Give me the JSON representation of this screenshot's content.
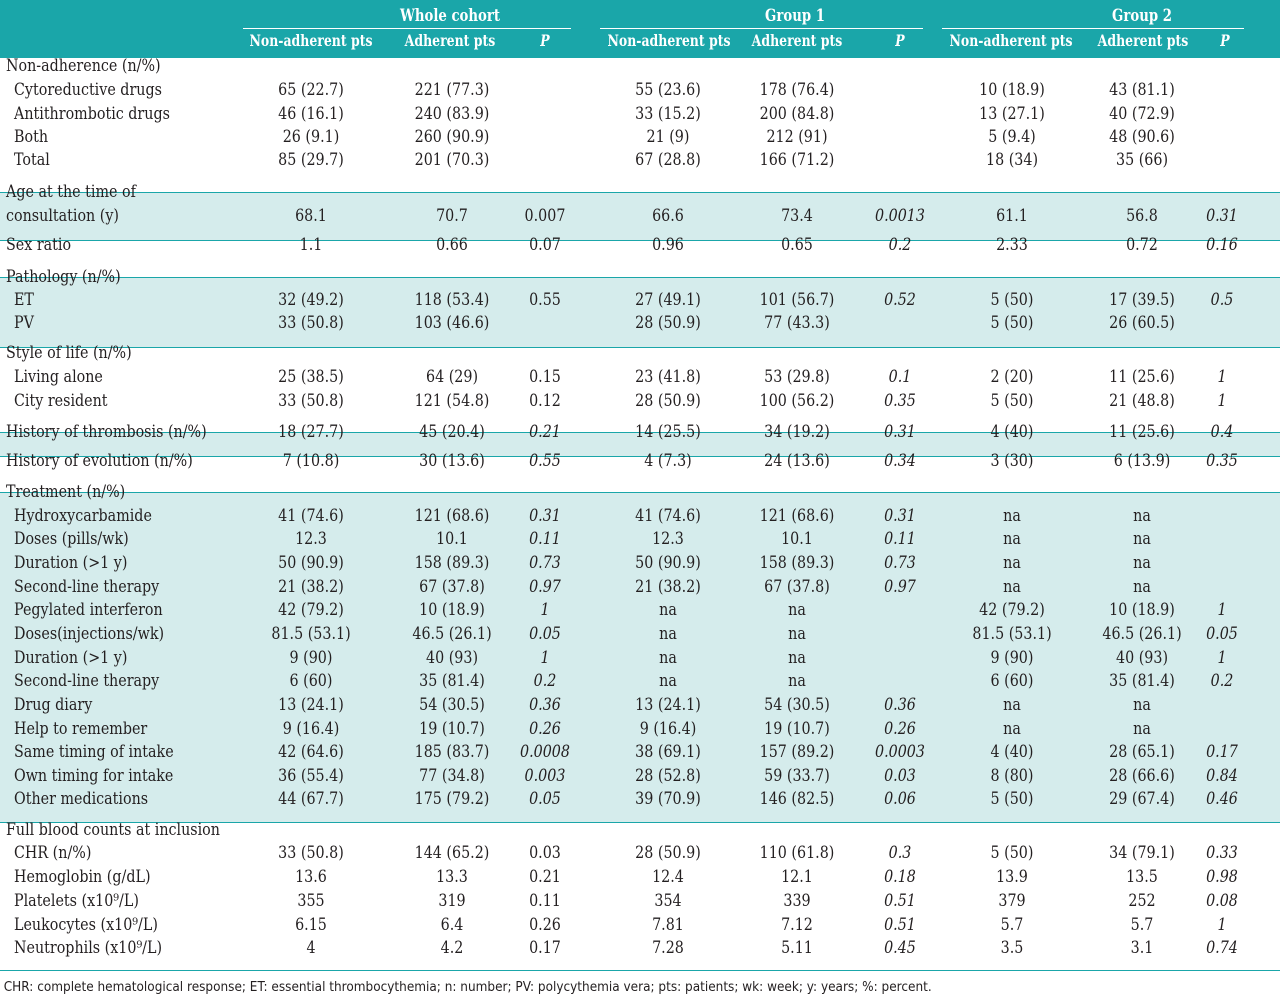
{
  "groups": [
    "Whole cohort",
    "Group 1",
    "Group 2"
  ],
  "subheaders": [
    "Non-adherent pts",
    "Adherent pts",
    "P",
    "Non-adherent pts",
    "Adherent pts",
    "P",
    "Non-adherent pts",
    "Adherent pts",
    "P"
  ],
  "rows": [
    {
      "label": "Non-adherence (n/%)",
      "sub": false,
      "tint": false,
      "vals": [
        "",
        "",
        "",
        "",
        "",
        "",
        "",
        "",
        ""
      ]
    },
    {
      "label": "Cytoreductive drugs",
      "sub": true,
      "tint": false,
      "vals": [
        "65 (22.7)",
        "221 (77.3)",
        "",
        "55 (23.6)",
        "178 (76.4)",
        "",
        "10 (18.9)",
        "43 (81.1)",
        ""
      ]
    },
    {
      "label": "Antithrombotic drugs",
      "sub": true,
      "tint": false,
      "vals": [
        "46 (16.1)",
        "240 (83.9)",
        "",
        "33 (15.2)",
        "200 (84.8)",
        "",
        "13 (27.1)",
        "40 (72.9)",
        ""
      ]
    },
    {
      "label": "Both",
      "sub": true,
      "tint": false,
      "vals": [
        "26 (9.1)",
        "260 (90.9)",
        "",
        "21 (9)",
        "212 (91)",
        "",
        "5 (9.4)",
        "48 (90.6)",
        ""
      ]
    },
    {
      "label": "Total",
      "sub": true,
      "tint": false,
      "vals": [
        "85 (29.7)",
        "201 (70.3)",
        "",
        "67 (28.8)",
        "166 (71.2)",
        "",
        "18 (34)",
        "35 (66)",
        ""
      ]
    },
    {
      "label": "Age at the time of",
      "sub": false,
      "tint": true,
      "vals": [
        "",
        "",
        "",
        "",
        "",
        "",
        "",
        "",
        ""
      ]
    },
    {
      "label": "consultation (y)",
      "sub": false,
      "tint": true,
      "vals": [
        "68.1",
        "70.7",
        "0.007",
        "66.6",
        "73.4",
        "0.0013",
        "61.1",
        "56.8",
        "0.31"
      ]
    },
    {
      "label": "Sex ratio",
      "sub": false,
      "tint": false,
      "vals": [
        "1.1",
        "0.66",
        "0.07",
        "0.96",
        "0.65",
        "0.2",
        "2.33",
        "0.72",
        "0.16"
      ]
    },
    {
      "label": "Pathology (n/%)",
      "sub": false,
      "tint": true,
      "vals": [
        "",
        "",
        "",
        "",
        "",
        "",
        "",
        "",
        ""
      ]
    },
    {
      "label": "ET",
      "sub": true,
      "tint": true,
      "vals": [
        "32 (49.2)",
        "118 (53.4)",
        "0.55",
        "27 (49.1)",
        "101 (56.7)",
        "0.52",
        "5 (50)",
        "17 (39.5)",
        "0.5"
      ]
    },
    {
      "label": "PV",
      "sub": true,
      "tint": true,
      "vals": [
        "33 (50.8)",
        "103 (46.6)",
        "",
        "28 (50.9)",
        "77 (43.3)",
        "",
        "5 (50)",
        "26 (60.5)",
        ""
      ]
    },
    {
      "label": "Style of life (n/%)",
      "sub": false,
      "tint": false,
      "vals": [
        "",
        "",
        "",
        "",
        "",
        "",
        "",
        "",
        ""
      ]
    },
    {
      "label": "Living alone",
      "sub": true,
      "tint": false,
      "vals": [
        "25 (38.5)",
        "64 (29)",
        "0.15",
        "23 (41.8)",
        "53 (29.8)",
        "0.1",
        "2 (20)",
        "11 (25.6)",
        "1"
      ]
    },
    {
      "label": "City resident",
      "sub": true,
      "tint": false,
      "vals": [
        "33 (50.8)",
        "121 (54.8)",
        "0.12",
        "28 (50.9)",
        "100 (56.2)",
        "0.35",
        "5 (50)",
        "21 (48.8)",
        "1"
      ]
    },
    {
      "label": "History of thrombosis (n/%)",
      "sub": false,
      "tint": true,
      "vals": [
        "18 (27.7)",
        "45 (20.4)",
        "0.21",
        "14 (25.5)",
        "34 (19.2)",
        "0.31",
        "4 (40)",
        "11 (25.6)",
        "0.4"
      ]
    },
    {
      "label": "History of evolution (n/%)",
      "sub": false,
      "tint": false,
      "vals": [
        "7 (10.8)",
        "30 (13.6)",
        "0.55",
        "4 (7.3)",
        "24 (13.6)",
        "0.34",
        "3 (30)",
        "6 (13.9)",
        "0.35"
      ]
    },
    {
      "label": "Treatment (n/%)",
      "sub": false,
      "tint": true,
      "vals": [
        "",
        "",
        "",
        "",
        "",
        "",
        "",
        "",
        ""
      ]
    },
    {
      "label": "Hydroxycarbamide",
      "sub": true,
      "tint": true,
      "vals": [
        "41 (74.6)",
        "121 (68.6)",
        "0.31",
        "41 (74.6)",
        "121 (68.6)",
        "0.31",
        "na",
        "na",
        ""
      ]
    },
    {
      "label": "Doses (pills/wk)",
      "sub": true,
      "tint": true,
      "vals": [
        "12.3",
        "10.1",
        "0.11",
        "12.3",
        "10.1",
        "0.11",
        "na",
        "na",
        ""
      ]
    },
    {
      "label": "Duration (>1 y)",
      "sub": true,
      "tint": true,
      "vals": [
        "50 (90.9)",
        "158 (89.3)",
        "0.73",
        "50 (90.9)",
        "158 (89.3)",
        "0.73",
        "na",
        "na",
        ""
      ]
    },
    {
      "label": "Second-line therapy",
      "sub": true,
      "tint": true,
      "vals": [
        "21 (38.2)",
        "67 (37.8)",
        "0.97",
        "21 (38.2)",
        "67 (37.8)",
        "0.97",
        "na",
        "na",
        ""
      ]
    },
    {
      "label": "Pegylated interferon",
      "sub": true,
      "tint": true,
      "vals": [
        "42 (79.2)",
        "10 (18.9)",
        "1",
        "na",
        "na",
        "",
        "42 (79.2)",
        "10 (18.9)",
        "1"
      ]
    },
    {
      "label": "Doses(injections/wk)",
      "sub": true,
      "tint": true,
      "vals": [
        "81.5 (53.1)",
        "46.5 (26.1)",
        "0.05",
        "na",
        "na",
        "",
        "81.5 (53.1)",
        "46.5 (26.1)",
        "0.05"
      ]
    },
    {
      "label": "Duration (>1 y)",
      "sub": true,
      "tint": true,
      "vals": [
        "9 (90)",
        "40 (93)",
        "1",
        "na",
        "na",
        "",
        "9 (90)",
        "40 (93)",
        "1"
      ]
    },
    {
      "label": "Second-line therapy",
      "sub": true,
      "tint": true,
      "vals": [
        "6 (60)",
        "35 (81.4)",
        "0.2",
        "na",
        "na",
        "",
        "6 (60)",
        "35 (81.4)",
        "0.2"
      ]
    },
    {
      "label": "Drug diary",
      "sub": true,
      "tint": true,
      "vals": [
        "13 (24.1)",
        "54 (30.5)",
        "0.36",
        "13 (24.1)",
        "54 (30.5)",
        "0.36",
        "na",
        "na",
        ""
      ]
    },
    {
      "label": "Help to remember",
      "sub": true,
      "tint": true,
      "vals": [
        "9 (16.4)",
        "19 (10.7)",
        "0.26",
        "9 (16.4)",
        "19 (10.7)",
        "0.26",
        "na",
        "na",
        ""
      ]
    },
    {
      "label": "Same timing of intake",
      "sub": true,
      "tint": true,
      "vals": [
        "42 (64.6)",
        "185 (83.7)",
        "0.0008",
        "38 (69.1)",
        "157 (89.2)",
        "0.0003",
        "4 (40)",
        "28 (65.1)",
        "0.17"
      ]
    },
    {
      "label": "Own timing for intake",
      "sub": true,
      "tint": true,
      "vals": [
        "36 (55.4)",
        "77 (34.8)",
        "0.003",
        "28 (52.8)",
        "59 (33.7)",
        "0.03",
        "8 (80)",
        "28 (66.6)",
        "0.84"
      ]
    },
    {
      "label": "Other medications",
      "sub": true,
      "tint": true,
      "vals": [
        "44 (67.7)",
        "175 (79.2)",
        "0.05",
        "39 (70.9)",
        "146 (82.5)",
        "0.06",
        "5 (50)",
        "29 (67.4)",
        "0.46"
      ]
    },
    {
      "label": "Full blood counts at inclusion",
      "sub": false,
      "tint": false,
      "vals": [
        "",
        "",
        "",
        "",
        "",
        "",
        "",
        "",
        ""
      ]
    },
    {
      "label": "CHR (n/%)",
      "sub": true,
      "tint": false,
      "vals": [
        "33 (50.8)",
        "144 (65.2)",
        "0.03",
        "28 (50.9)",
        "110 (61.8)",
        "0.3",
        "5 (50)",
        "34 (79.1)",
        "0.33"
      ]
    },
    {
      "label": "Hemoglobin (g/dL)",
      "sub": true,
      "tint": false,
      "vals": [
        "13.6",
        "13.3",
        "0.21",
        "12.4",
        "12.1",
        "0.18",
        "13.9",
        "13.5",
        "0.98"
      ]
    },
    {
      "label": "Platelets (x10⁹/L)",
      "sub": true,
      "tint": false,
      "vals": [
        "355",
        "319",
        "0.11",
        "354",
        "339",
        "0.51",
        "379",
        "252",
        "0.08"
      ]
    },
    {
      "label": "Leukocytes (x10⁹/L)",
      "sub": true,
      "tint": false,
      "vals": [
        "6.15",
        "6.4",
        "0.26",
        "7.81",
        "7.12",
        "0.51",
        "5.7",
        "5.7",
        "1"
      ]
    },
    {
      "label": "Neutrophils (x10⁹/L)",
      "sub": true,
      "tint": false,
      "vals": [
        "4",
        "4.2",
        "0.17",
        "7.28",
        "5.11",
        "0.45",
        "3.5",
        "3.1",
        "0.74"
      ]
    }
  ],
  "footnote": "CHR: complete hematological response; ET: essential thrombocythemia; n: number; PV: polycythemia vera; pts: patients; wk: week; y: years; %: percent.",
  "colors": {
    "header": "#1aa6a9",
    "tint": "#d5ecec",
    "text": "#231f20"
  }
}
